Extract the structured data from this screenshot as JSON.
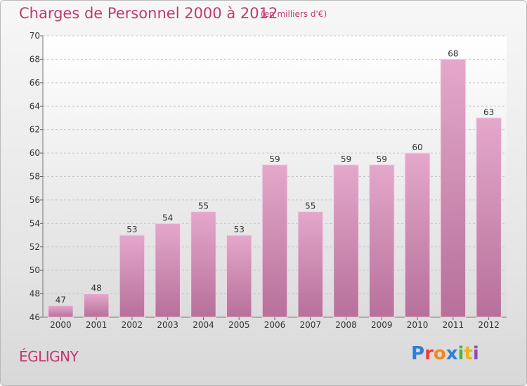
{
  "header": {
    "title": "Charges de Personnel 2000 à 2012",
    "subtitle": "(en milliers d'€)"
  },
  "footer": {
    "place": "ÉGLIGNY",
    "brand": "Proxiti"
  },
  "chart_data": {
    "type": "bar",
    "title": "Charges de Personnel 2000 à 2012",
    "subtitle": "(en milliers d'€)",
    "categories": [
      "2000",
      "2001",
      "2002",
      "2003",
      "2004",
      "2005",
      "2006",
      "2007",
      "2008",
      "2009",
      "2010",
      "2011",
      "2012"
    ],
    "values": [
      47,
      48,
      53,
      54,
      55,
      53,
      59,
      55,
      59,
      59,
      60,
      68,
      63
    ],
    "ylim": [
      46,
      70
    ],
    "yticks": [
      46,
      48,
      50,
      52,
      54,
      56,
      58,
      60,
      62,
      64,
      66,
      68,
      70
    ],
    "grid": true,
    "bar_color": "#d58fb4",
    "title_color": "#c0396f"
  }
}
